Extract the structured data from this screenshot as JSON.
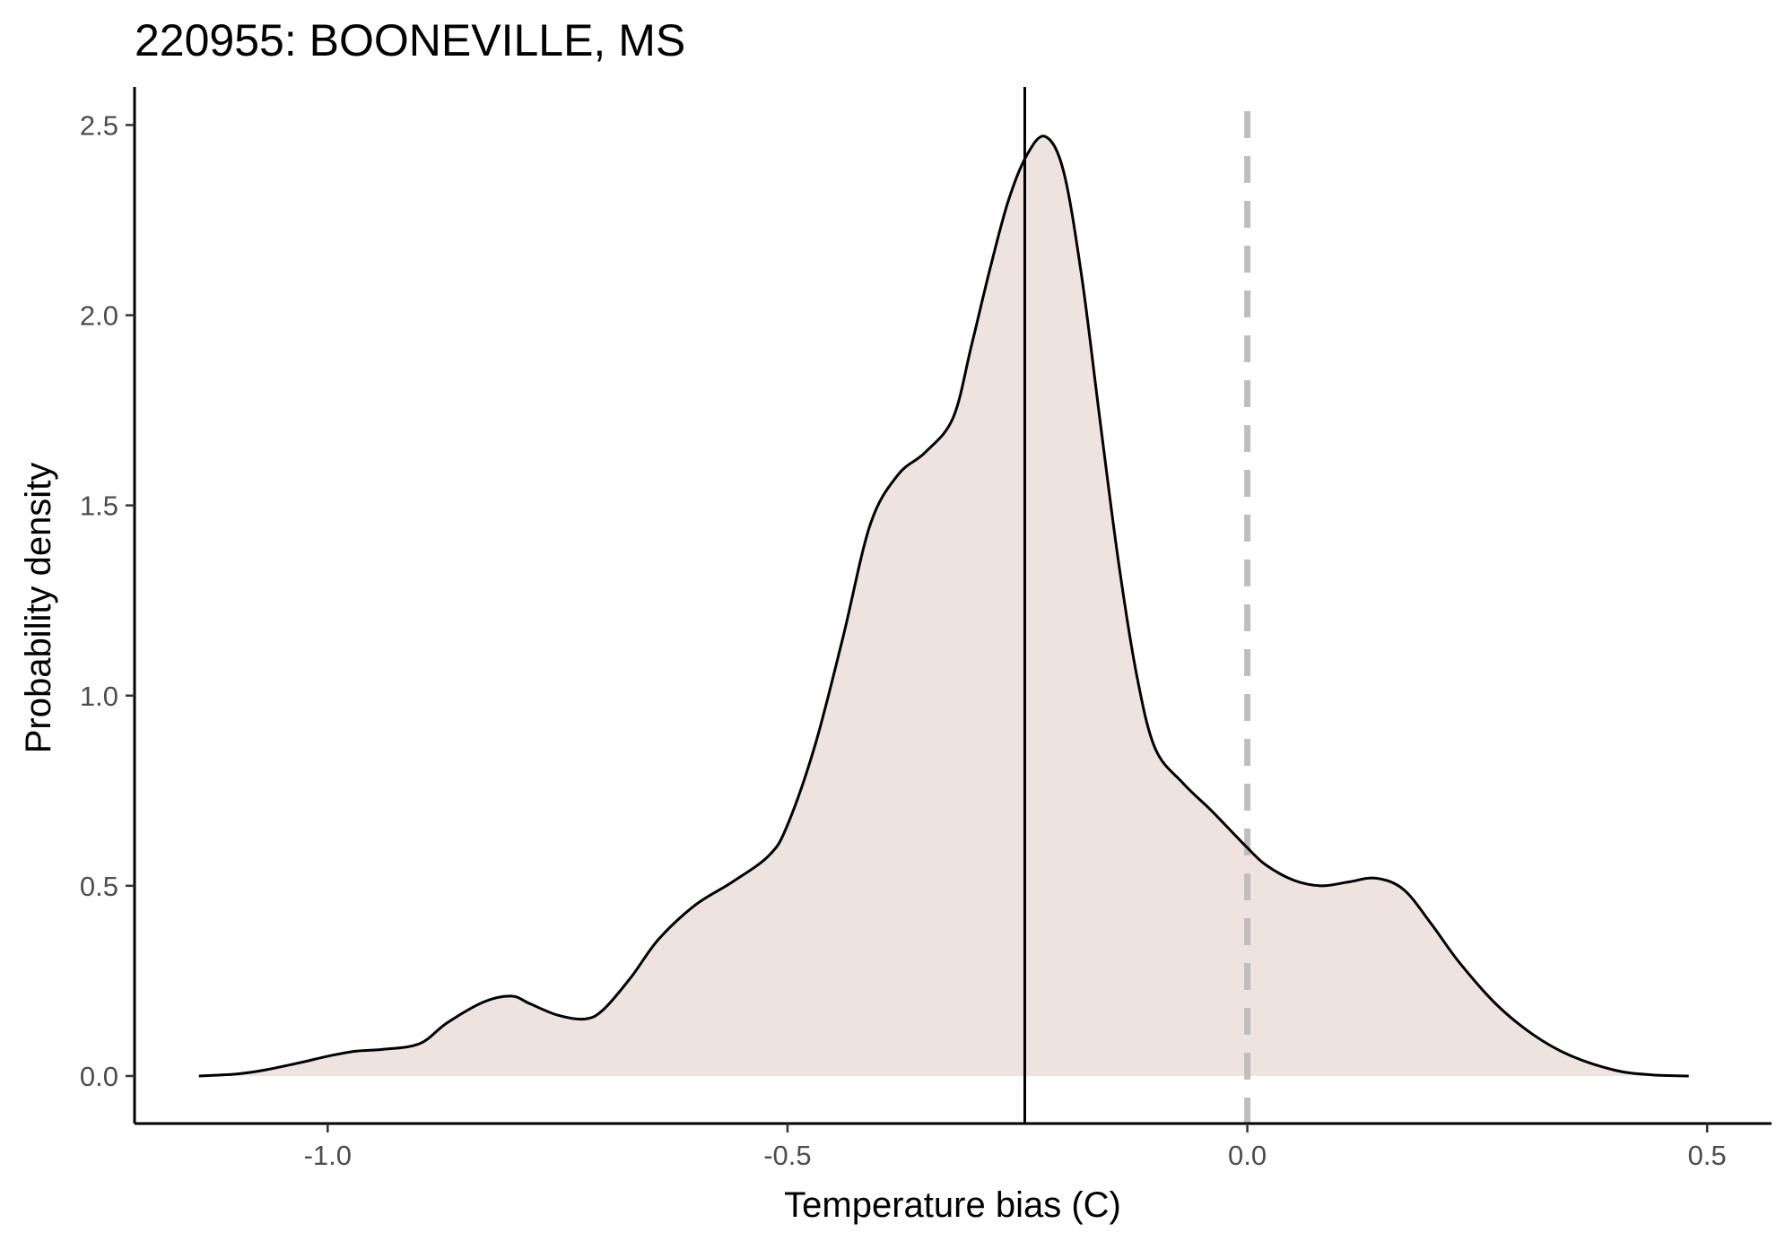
{
  "chart_data": {
    "type": "area",
    "title": "220955: BOONEVILLE, MS",
    "xlabel": "Temperature bias (C)",
    "ylabel": "Probability density",
    "xlim": [
      -1.21,
      0.57
    ],
    "ylim": [
      -0.125,
      2.6
    ],
    "x_ticks": [
      -1.0,
      -0.5,
      0.0,
      0.5
    ],
    "x_tick_labels": [
      "-1.0",
      "-0.5",
      "0.0",
      "0.5"
    ],
    "y_ticks": [
      0.0,
      0.5,
      1.0,
      1.5,
      2.0,
      2.5
    ],
    "y_tick_labels": [
      "0.0",
      "0.5",
      "1.0",
      "1.5",
      "2.0",
      "2.5"
    ],
    "grid": false,
    "fill_color": "#eee3df",
    "line_color": "#000000",
    "mean_line": {
      "x": -0.242,
      "color": "#000000",
      "style": "solid"
    },
    "reference_line": {
      "x": 0.0,
      "color": "#bebebe",
      "style": "dashed"
    },
    "series": [
      {
        "x": [
          -1.14,
          -1.1,
          -1.07,
          -1.03,
          -1.0,
          -0.97,
          -0.94,
          -0.9,
          -0.87,
          -0.83,
          -0.8,
          -0.78,
          -0.75,
          -0.72,
          -0.7,
          -0.67,
          -0.64,
          -0.6,
          -0.56,
          -0.52,
          -0.5,
          -0.47,
          -0.44,
          -0.41,
          -0.38,
          -0.35,
          -0.32,
          -0.3,
          -0.28,
          -0.26,
          -0.24,
          -0.22,
          -0.2,
          -0.18,
          -0.16,
          -0.14,
          -0.12,
          -0.1,
          -0.07,
          -0.04,
          -0.02,
          0.0,
          0.02,
          0.05,
          0.08,
          0.11,
          0.14,
          0.17,
          0.2,
          0.23,
          0.27,
          0.31,
          0.35,
          0.4,
          0.44,
          0.48
        ],
        "y": [
          0.0,
          0.005,
          0.015,
          0.035,
          0.052,
          0.065,
          0.07,
          0.085,
          0.14,
          0.195,
          0.21,
          0.19,
          0.16,
          0.15,
          0.175,
          0.26,
          0.36,
          0.45,
          0.51,
          0.58,
          0.66,
          0.87,
          1.15,
          1.45,
          1.58,
          1.64,
          1.73,
          1.92,
          2.12,
          2.3,
          2.42,
          2.47,
          2.38,
          2.1,
          1.72,
          1.35,
          1.05,
          0.86,
          0.77,
          0.7,
          0.65,
          0.6,
          0.555,
          0.515,
          0.5,
          0.51,
          0.52,
          0.49,
          0.4,
          0.3,
          0.19,
          0.11,
          0.055,
          0.015,
          0.003,
          0.0
        ]
      }
    ]
  }
}
